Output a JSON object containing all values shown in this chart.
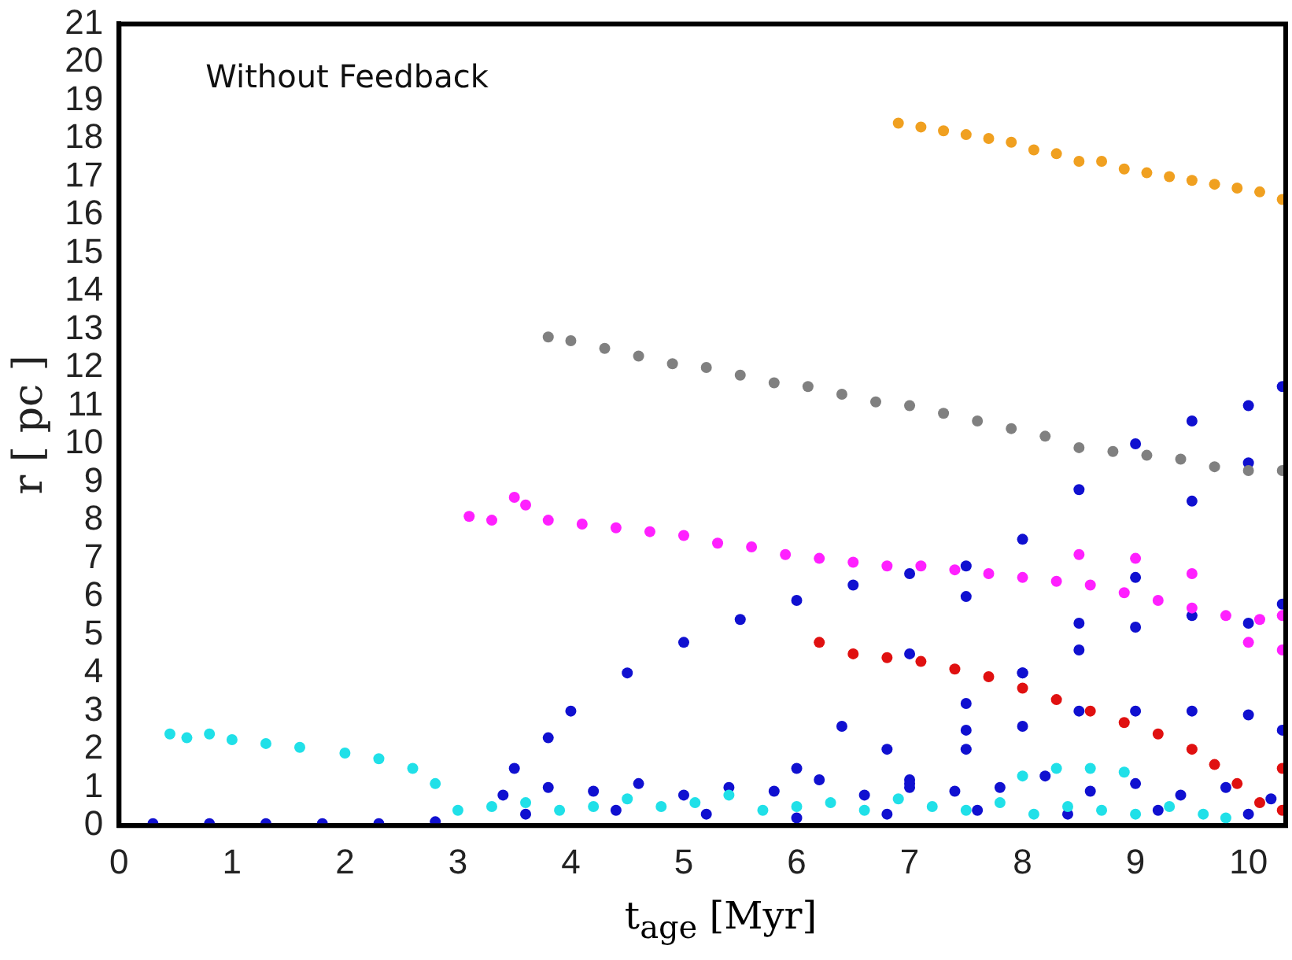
{
  "chart_data": {
    "type": "scatter",
    "xlabel": "t$_{age}$ [Myr]",
    "ylabel": "r [ pc ]",
    "annotations": [
      "Without Feedback"
    ],
    "xlim": [
      0,
      10.33
    ],
    "ylim": [
      0,
      21
    ],
    "xticks": [
      0,
      1,
      2,
      3,
      4,
      5,
      6,
      7,
      8,
      9,
      10
    ],
    "yticks": [
      0,
      1,
      2,
      3,
      4,
      5,
      6,
      7,
      8,
      9,
      10,
      11,
      12,
      13,
      14,
      15,
      16,
      17,
      18,
      19,
      20,
      21
    ],
    "grid": false,
    "legend": false,
    "marker": "circle",
    "series": [
      {
        "color": "#f0a020",
        "x": [
          6.9,
          7.1,
          7.3,
          7.5,
          7.7,
          7.9,
          8.1,
          8.3,
          8.5,
          8.7,
          8.9,
          9.1,
          9.3,
          9.5,
          9.7,
          9.9,
          10.1,
          10.3
        ],
        "values": [
          18.4,
          18.3,
          18.2,
          18.1,
          18.0,
          17.9,
          17.7,
          17.6,
          17.4,
          17.4,
          17.2,
          17.1,
          17.0,
          16.9,
          16.8,
          16.7,
          16.6,
          16.4
        ]
      },
      {
        "color": "#808080",
        "x": [
          3.8,
          4.0,
          4.3,
          4.6,
          4.9,
          5.2,
          5.5,
          5.8,
          6.1,
          6.4,
          6.7,
          7.0,
          7.3,
          7.6,
          7.9,
          8.2,
          8.5,
          8.8,
          9.1,
          9.4,
          9.7,
          10.0,
          10.3
        ],
        "values": [
          12.8,
          12.7,
          12.5,
          12.3,
          12.1,
          12.0,
          11.8,
          11.6,
          11.5,
          11.3,
          11.1,
          11.0,
          10.8,
          10.6,
          10.4,
          10.2,
          9.9,
          9.8,
          9.7,
          9.6,
          9.4,
          9.3,
          9.3
        ]
      },
      {
        "color": "#ff20ff",
        "x": [
          3.1,
          3.3,
          3.5,
          3.6,
          3.8,
          4.1,
          4.4,
          4.7,
          5.0,
          5.3,
          5.6,
          5.9,
          6.2,
          6.5,
          6.8,
          7.1,
          7.4,
          7.7,
          8.0,
          8.3,
          8.6,
          8.9,
          9.2,
          9.5,
          9.8,
          10.1,
          10.3,
          8.5,
          9.0,
          9.5,
          10.0,
          10.3
        ],
        "values": [
          8.1,
          8.0,
          8.6,
          8.4,
          8.0,
          7.9,
          7.8,
          7.7,
          7.6,
          7.4,
          7.3,
          7.1,
          7.0,
          6.9,
          6.8,
          6.8,
          6.7,
          6.6,
          6.5,
          6.4,
          6.3,
          6.1,
          5.9,
          5.7,
          5.5,
          5.4,
          5.5,
          7.1,
          7.0,
          6.6,
          4.8,
          4.6
        ]
      },
      {
        "color": "#e01010",
        "x": [
          6.2,
          6.5,
          6.8,
          7.1,
          7.4,
          7.7,
          8.0,
          8.3,
          8.6,
          8.9,
          9.2,
          9.5,
          9.7,
          9.9,
          10.1,
          10.3,
          10.3
        ],
        "values": [
          4.8,
          4.5,
          4.4,
          4.3,
          4.1,
          3.9,
          3.6,
          3.3,
          3.0,
          2.7,
          2.4,
          2.0,
          1.6,
          1.1,
          0.6,
          1.5,
          0.4
        ]
      },
      {
        "color": "#20e0e8",
        "x": [
          0.45,
          0.6,
          0.8,
          1.0,
          1.3,
          1.6,
          2.0,
          2.3,
          2.6,
          2.8,
          3.0,
          3.3,
          3.6,
          3.9,
          4.2,
          4.5,
          4.8,
          5.1,
          5.4,
          5.7,
          6.0,
          6.3,
          6.6,
          6.9,
          7.2,
          7.5,
          7.8,
          8.1,
          8.4,
          8.7,
          9.0,
          9.3,
          9.6,
          9.8,
          8.0,
          8.3,
          8.6,
          8.9
        ],
        "values": [
          2.4,
          2.3,
          2.4,
          2.25,
          2.15,
          2.05,
          1.9,
          1.75,
          1.5,
          1.1,
          0.4,
          0.5,
          0.6,
          0.4,
          0.5,
          0.7,
          0.5,
          0.6,
          0.8,
          0.4,
          0.5,
          0.6,
          0.4,
          0.7,
          0.5,
          0.4,
          0.6,
          0.3,
          0.5,
          0.4,
          0.3,
          0.5,
          0.3,
          0.2,
          1.3,
          1.5,
          1.5,
          1.4
        ]
      },
      {
        "color": "#1010d0",
        "x": [
          0.3,
          0.8,
          1.3,
          1.8,
          2.3,
          2.8,
          3.5,
          3.8,
          4.0,
          4.5,
          5.0,
          5.5,
          6.0,
          6.5,
          7.0,
          7.5,
          6.0,
          6.4,
          7.0,
          7.5,
          8.0,
          8.5,
          9.0,
          9.5,
          10.0,
          10.3,
          7.0,
          7.5,
          8.0,
          8.5,
          9.0,
          9.5,
          10.0,
          6.8,
          7.5,
          8.0,
          8.5,
          9.0,
          9.5,
          10.0,
          10.3,
          7.0,
          7.5,
          8.0,
          8.5,
          9.0,
          9.5,
          10.0,
          10.3,
          3.4,
          3.8,
          4.2,
          4.6,
          5.0,
          5.4,
          5.8,
          6.2,
          6.6,
          7.0,
          7.4,
          7.8,
          8.2,
          8.6,
          9.0,
          9.4,
          9.8,
          10.2,
          3.6,
          4.4,
          5.2,
          6.0,
          6.8,
          7.6,
          8.4,
          9.2,
          10.0
        ],
        "values": [
          0.05,
          0.05,
          0.05,
          0.05,
          0.05,
          0.1,
          1.5,
          2.3,
          3.0,
          4.0,
          4.8,
          5.4,
          5.9,
          6.3,
          6.6,
          6.8,
          1.5,
          2.6,
          4.5,
          6.0,
          7.5,
          8.8,
          10.0,
          10.6,
          11.0,
          11.5,
          1.0,
          2.5,
          4.0,
          5.3,
          6.5,
          8.5,
          9.5,
          2.0,
          3.2,
          4.0,
          4.6,
          5.2,
          5.5,
          5.3,
          5.8,
          1.2,
          2.0,
          2.6,
          3.0,
          3.0,
          3.0,
          2.9,
          2.5,
          0.8,
          1.0,
          0.9,
          1.1,
          0.8,
          1.0,
          0.9,
          1.2,
          0.8,
          1.1,
          0.9,
          1.0,
          1.3,
          0.9,
          1.1,
          0.8,
          1.0,
          0.7,
          0.3,
          0.4,
          0.3,
          0.2,
          0.3,
          0.4,
          0.3,
          0.4,
          0.3
        ]
      }
    ]
  }
}
